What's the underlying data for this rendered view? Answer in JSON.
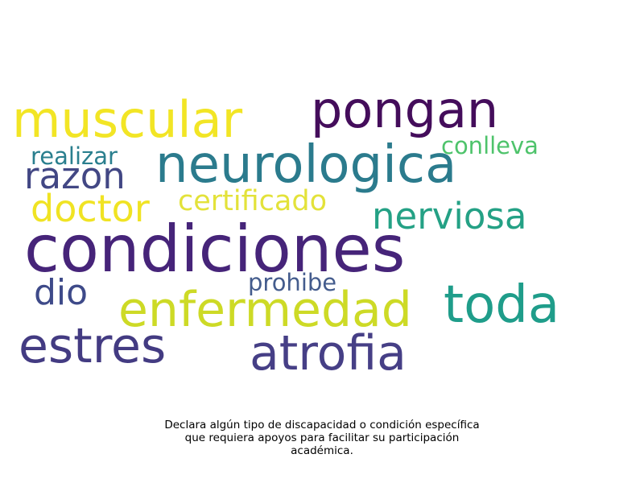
{
  "words": [
    {
      "text": "condiciones",
      "color": "#462479"
    },
    {
      "text": "neurologica",
      "color": "#2b7b8d"
    },
    {
      "text": "pongan",
      "color": "#440d5b"
    },
    {
      "text": "muscular",
      "color": "#f2e525"
    },
    {
      "text": "enfermedad",
      "color": "#cdda26"
    },
    {
      "text": "toda",
      "color": "#1f9d8a"
    },
    {
      "text": "atrofia",
      "color": "#463f86"
    },
    {
      "text": "estres",
      "color": "#433b82"
    },
    {
      "text": "razon",
      "color": "#424784"
    },
    {
      "text": "doctor",
      "color": "#f0e323"
    },
    {
      "text": "nerviosa",
      "color": "#24a185"
    },
    {
      "text": "certificado",
      "color": "#e3e23a"
    },
    {
      "text": "dio",
      "color": "#3e4a89"
    },
    {
      "text": "realizar",
      "color": "#2a7f8e"
    },
    {
      "text": "conlleva",
      "color": "#4ec36b"
    },
    {
      "text": "prohibe",
      "color": "#445c8d"
    }
  ],
  "caption": {
    "line1": "Declara algún tipo de discapacidad o condición específica",
    "line2": "que requiera apoyos para facilitar su participación",
    "line3": "académica."
  }
}
